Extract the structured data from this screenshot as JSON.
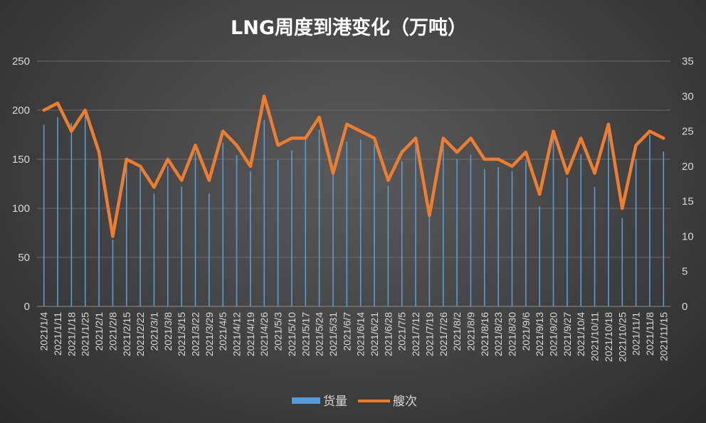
{
  "chart_data": {
    "type": "bar",
    "title": "LNG周度到港变化（万吨）",
    "xlabel": "",
    "ylabel": "",
    "y2label": "",
    "ylim": [
      0,
      250
    ],
    "y_ticks": [
      0,
      50,
      100,
      150,
      200,
      250
    ],
    "y2lim": [
      0,
      35
    ],
    "y2_ticks": [
      0,
      5,
      10,
      15,
      20,
      25,
      30,
      35
    ],
    "grid": true,
    "legend_position": "bottom",
    "colors": {
      "bar": "#5b9bd5",
      "line": "#ed7d31"
    },
    "categories": [
      "2021/1/4",
      "2021/1/11",
      "2021/1/18",
      "2021/1/25",
      "2021/2/1",
      "2021/2/8",
      "2021/2/15",
      "2021/2/22",
      "2021/3/1",
      "2021/3/8",
      "2021/3/15",
      "2021/3/22",
      "2021/3/29",
      "2021/4/5",
      "2021/4/12",
      "2021/4/19",
      "2021/4/26",
      "2021/5/3",
      "2021/5/10",
      "2021/5/17",
      "2021/5/24",
      "2021/5/31",
      "2021/6/7",
      "2021/6/14",
      "2021/6/21",
      "2021/6/28",
      "2021/7/5",
      "2021/7/12",
      "2021/7/19",
      "2021/7/26",
      "2021/8/2",
      "2021/8/9",
      "2021/8/16",
      "2021/8/23",
      "2021/8/30",
      "2021/9/6",
      "2021/9/13",
      "2021/9/20",
      "2021/9/27",
      "2021/10/4",
      "2021/10/11",
      "2021/10/18",
      "2021/10/25",
      "2021/11/1",
      "2021/11/8",
      "2021/11/15"
    ],
    "series": [
      {
        "name": "货量",
        "type": "bar",
        "axis": "left",
        "values": [
          185,
          193,
          187,
          195,
          155,
          68,
          145,
          140,
          115,
          143,
          122,
          157,
          115,
          167,
          154,
          138,
          190,
          149,
          159,
          170,
          180,
          143,
          168,
          170,
          165,
          123,
          148,
          171,
          94,
          165,
          150,
          155,
          140,
          142,
          138,
          149,
          102,
          178,
          131,
          155,
          122,
          178,
          90,
          150,
          175,
          158
        ]
      },
      {
        "name": "艘次",
        "type": "line",
        "axis": "right",
        "values": [
          28,
          29,
          25,
          28,
          22,
          10,
          21,
          20,
          17,
          21,
          18,
          23,
          18,
          25,
          23,
          20,
          30,
          23,
          24,
          24,
          27,
          19,
          26,
          25,
          24,
          18,
          22,
          24,
          13,
          24,
          22,
          24,
          21,
          21,
          20,
          22,
          16,
          25,
          19,
          24,
          19,
          26,
          14,
          23,
          25,
          24
        ]
      }
    ]
  }
}
